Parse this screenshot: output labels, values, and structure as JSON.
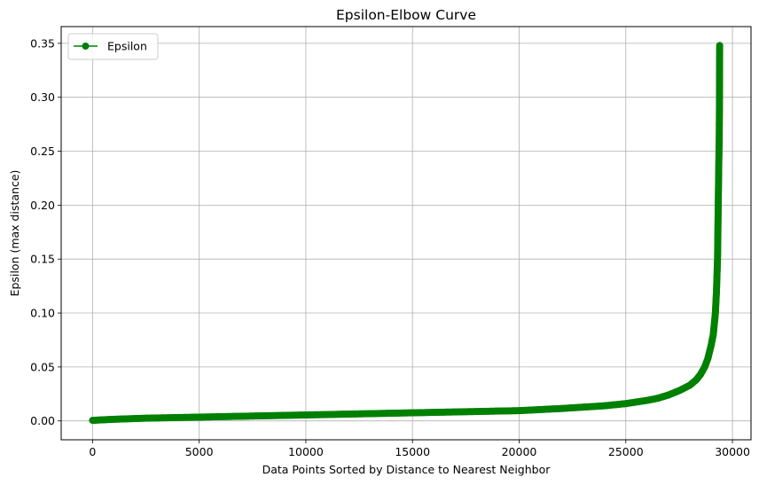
{
  "chart_data": {
    "type": "line",
    "title": "Epsilon-Elbow Curve",
    "xlabel": "Data Points Sorted by Distance to Nearest Neighbor",
    "ylabel": "Epsilon (max distance)",
    "xlim": [
      -1470,
      30870
    ],
    "ylim": [
      -0.0175,
      0.3655
    ],
    "xticks": [
      0,
      5000,
      10000,
      15000,
      20000,
      25000,
      30000
    ],
    "xtick_labels": [
      "0",
      "5000",
      "10000",
      "15000",
      "20000",
      "25000",
      "30000"
    ],
    "yticks": [
      0.0,
      0.05,
      0.1,
      0.15,
      0.2,
      0.25,
      0.3,
      0.35
    ],
    "ytick_labels": [
      "0.00",
      "0.05",
      "0.10",
      "0.15",
      "0.20",
      "0.25",
      "0.30",
      "0.35"
    ],
    "grid": true,
    "legend_position": "upper-left",
    "marker": "circle",
    "color": "#008000",
    "series": [
      {
        "name": "Epsilon",
        "x": [
          0,
          1000,
          2500,
          5000,
          7500,
          10000,
          12500,
          15000,
          17500,
          20000,
          22000,
          24000,
          25000,
          26000,
          26500,
          27000,
          27500,
          28000,
          28300,
          28500,
          28700,
          28850,
          29000,
          29100,
          29150,
          29200,
          29250,
          29300,
          29320,
          29340,
          29360,
          29380,
          29390,
          29395,
          29400
        ],
        "y": [
          0.0005,
          0.0015,
          0.0025,
          0.0035,
          0.0045,
          0.0055,
          0.0065,
          0.0075,
          0.0085,
          0.0095,
          0.0115,
          0.014,
          0.016,
          0.019,
          0.021,
          0.024,
          0.028,
          0.033,
          0.038,
          0.043,
          0.05,
          0.058,
          0.07,
          0.08,
          0.09,
          0.1,
          0.12,
          0.15,
          0.18,
          0.21,
          0.24,
          0.262,
          0.292,
          0.324,
          0.348
        ]
      }
    ]
  }
}
